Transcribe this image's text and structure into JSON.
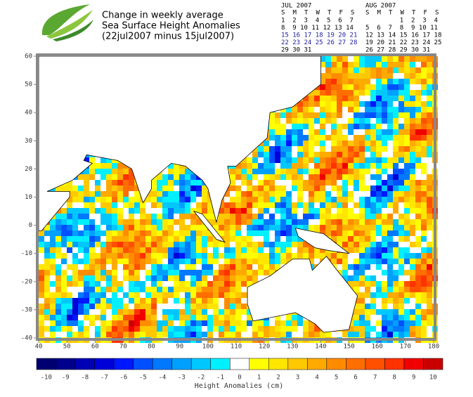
{
  "header": {
    "title_lines": [
      "Change in weekly average",
      "Sea Surface Height Anomalies",
      "(22jul2007 minus 15jul2007)"
    ]
  },
  "calendars": [
    {
      "title": "JUL 2007",
      "weekdays": [
        "S",
        "M",
        "T",
        "W",
        "T",
        "F",
        "S"
      ],
      "weeks": [
        "1  2  3  4  5  6  7",
        "8  9 10 11 12 13 14",
        "15 16 17 18 19 20 21",
        "22 23 24 25 26 27 28",
        "29 30 31"
      ],
      "highlight_color": "#1a1aa0",
      "highlighted_weeks": [
        2,
        3
      ]
    },
    {
      "title": "AUG 2007",
      "weekdays": [
        "S",
        "M",
        "T",
        "W",
        "T",
        "F",
        "S"
      ],
      "weeks": [
        "         1  2  3  4",
        "5  6  7  8  9 10 11",
        "12 13 14 15 16 17 18",
        "19 20 21 22 23 24 25",
        "26 27 28 29 30 31"
      ]
    }
  ],
  "map": {
    "xlim": [
      40,
      180
    ],
    "ylim": [
      -40,
      60
    ],
    "xticks": [
      40,
      50,
      60,
      70,
      80,
      90,
      100,
      110,
      120,
      130,
      140,
      150,
      160,
      170,
      180
    ],
    "yticks": [
      -40,
      -30,
      -20,
      -10,
      0,
      10,
      20,
      30,
      40,
      50,
      60
    ]
  },
  "colorbar": {
    "label": "Height Anomalies (cm)",
    "items": [
      {
        "value": -10,
        "color": "#000070"
      },
      {
        "value": -9,
        "color": "#00008c"
      },
      {
        "value": -8,
        "color": "#0000b4"
      },
      {
        "value": -7,
        "color": "#0000d8"
      },
      {
        "value": -6,
        "color": "#0018ff"
      },
      {
        "value": -5,
        "color": "#0050ff"
      },
      {
        "value": -4,
        "color": "#0078ff"
      },
      {
        "value": -3,
        "color": "#00a0ff"
      },
      {
        "value": -2,
        "color": "#00c8ff"
      },
      {
        "value": -1,
        "color": "#00f0ff"
      },
      {
        "value": 0,
        "color": "#ffffff"
      },
      {
        "value": 1,
        "color": "#ffff00"
      },
      {
        "value": 2,
        "color": "#ffe600"
      },
      {
        "value": 3,
        "color": "#ffc800"
      },
      {
        "value": 4,
        "color": "#ffaa00"
      },
      {
        "value": 5,
        "color": "#ff8c00"
      },
      {
        "value": 6,
        "color": "#ff6e00"
      },
      {
        "value": 7,
        "color": "#ff5000"
      },
      {
        "value": 8,
        "color": "#ff3200"
      },
      {
        "value": 9,
        "color": "#f00000"
      },
      {
        "value": 10,
        "color": "#c80000"
      }
    ]
  }
}
